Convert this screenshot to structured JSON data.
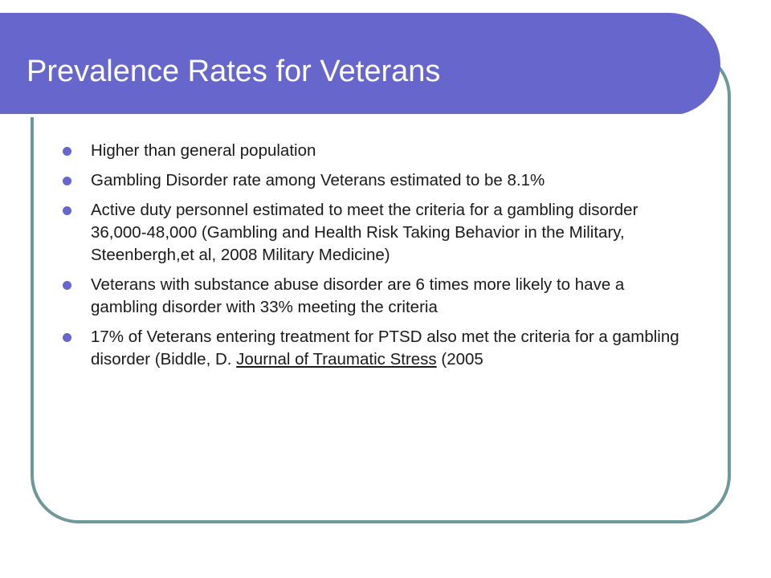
{
  "slide": {
    "title": "Prevalence Rates for Veterans",
    "colors": {
      "title_bar": "#6666cc",
      "frame_border": "#6f9898",
      "bullet_dot": "#6666cc",
      "text": "#1a1a1a"
    },
    "bullets": [
      {
        "text": "Higher than general population"
      },
      {
        "text": "Gambling Disorder rate among Veterans estimated to be 8.1%"
      },
      {
        "text": "Active duty personnel estimated to meet the criteria for a gambling disorder 36,000-48,000 (Gambling and Health Risk Taking Behavior in the Military, Steenbergh,et al, 2008 Military Medicine)"
      },
      {
        "text": "Veterans with substance abuse disorder are 6 times more likely to have a gambling disorder with 33% meeting the criteria"
      },
      {
        "text_before": "17% of Veterans entering treatment for PTSD also met the criteria for a gambling disorder (Biddle, D. ",
        "underlined": "Journal of Traumatic Stress",
        "text_after": " (2005"
      }
    ]
  }
}
